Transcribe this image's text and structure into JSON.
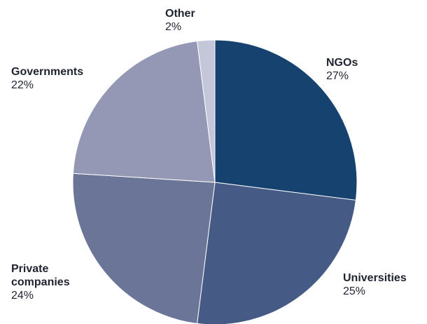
{
  "chart_data": {
    "type": "pie",
    "title": "",
    "start_angle_deg": 0,
    "direction": "clockwise",
    "slices": [
      {
        "label": "NGOs",
        "value": 27,
        "value_label": "27%",
        "color": "#15426f"
      },
      {
        "label": "Universities",
        "value": 25,
        "value_label": "25%",
        "color": "#455b86"
      },
      {
        "label": "Private companies",
        "label_lines": [
          "Private",
          "companies"
        ],
        "value": 24,
        "value_label": "24%",
        "color": "#6a7597"
      },
      {
        "label": "Governments",
        "value": 22,
        "value_label": "22%",
        "color": "#9498b5"
      },
      {
        "label": "Other",
        "value": 2,
        "value_label": "2%",
        "color": "#c4c7da"
      }
    ]
  }
}
